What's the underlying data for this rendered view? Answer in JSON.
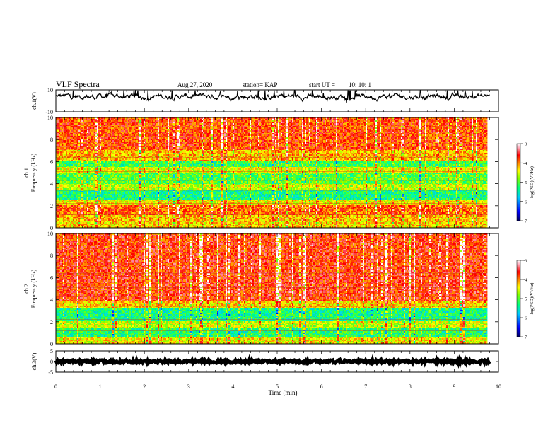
{
  "header": {
    "title": "VLF Spectra",
    "date": "Aug.27, 2020",
    "station": "station= KAP",
    "start_label": "start  UT =",
    "start_time": "10: 10: 1"
  },
  "chart_data": [
    {
      "type": "line",
      "panel": "ch1-waveform",
      "ylabel": "ch.1(V)",
      "ylim": [
        -10,
        10
      ],
      "yticks": [
        "10",
        "-10"
      ],
      "xlim": [
        0,
        10
      ],
      "note_series": "noisy waveform, mostly between -6 and 10 V"
    },
    {
      "type": "heatmap",
      "panel": "ch1-spectrogram",
      "ylabel_top": "ch.1",
      "ylabel": "Frequency  (kHz)",
      "ylim": [
        0,
        10
      ],
      "yticks": [
        "0",
        "2",
        "4",
        "6",
        "8",
        "10"
      ],
      "xlim": [
        0,
        10
      ],
      "bands": [
        {
          "from": 0.0,
          "to": 0.6,
          "level": -4.3
        },
        {
          "from": 0.6,
          "to": 1.2,
          "level": -4.2
        },
        {
          "from": 1.2,
          "to": 2.0,
          "level": -3.9
        },
        {
          "from": 2.0,
          "to": 2.6,
          "level": -4.4
        },
        {
          "from": 2.6,
          "to": 3.4,
          "level": -5.3
        },
        {
          "from": 3.4,
          "to": 4.0,
          "level": -4.6
        },
        {
          "from": 4.0,
          "to": 5.0,
          "level": -5.0
        },
        {
          "from": 5.0,
          "to": 5.5,
          "level": -4.5
        },
        {
          "from": 5.5,
          "to": 6.0,
          "level": -5.1
        },
        {
          "from": 6.0,
          "to": 7.0,
          "level": -4.2
        },
        {
          "from": 7.0,
          "to": 10.0,
          "level": -3.8
        }
      ],
      "colorbar": {
        "label": "log(PSD)(V²/Hz)",
        "ticks": [
          "-3",
          "-4",
          "-5",
          "-6",
          "-7"
        ],
        "range": [
          -7,
          -3
        ]
      }
    },
    {
      "type": "heatmap",
      "panel": "ch2-spectrogram",
      "ylabel_top": "ch.2",
      "ylabel": "Frequency  (kHz)",
      "ylim": [
        0,
        10
      ],
      "yticks": [
        "0",
        "2",
        "4",
        "6",
        "8",
        "10"
      ],
      "xlim": [
        0,
        10
      ],
      "bands": [
        {
          "from": 0.0,
          "to": 0.6,
          "level": -4.4
        },
        {
          "from": 0.6,
          "to": 1.4,
          "level": -5.2
        },
        {
          "from": 1.4,
          "to": 2.0,
          "level": -4.6
        },
        {
          "from": 2.0,
          "to": 3.2,
          "level": -5.3
        },
        {
          "from": 3.2,
          "to": 3.8,
          "level": -4.3
        },
        {
          "from": 3.8,
          "to": 10.0,
          "level": -3.7
        }
      ],
      "colorbar": {
        "label": "log(PSD)(V²/Hz)",
        "ticks": [
          "-3",
          "-4",
          "-5",
          "-6",
          "-7"
        ],
        "range": [
          -7,
          -3
        ]
      }
    },
    {
      "type": "line",
      "panel": "ch3-waveform",
      "ylabel": "ch.3(V)",
      "ylim": [
        -5,
        5
      ],
      "yticks": [
        "5",
        "0",
        "-5"
      ],
      "xlim": [
        0,
        10
      ],
      "xlabel": "Time  (min)",
      "xticks": [
        "0",
        "1",
        "2",
        "3",
        "4",
        "5",
        "6",
        "7",
        "8",
        "9",
        "10"
      ],
      "level": 0
    }
  ],
  "colors": {
    "palette": [
      "#000080",
      "#0000ff",
      "#00bfff",
      "#00ff80",
      "#7fff00",
      "#ffff00",
      "#ffa500",
      "#ff0000",
      "#ffc0cb",
      "#ffffff"
    ]
  }
}
